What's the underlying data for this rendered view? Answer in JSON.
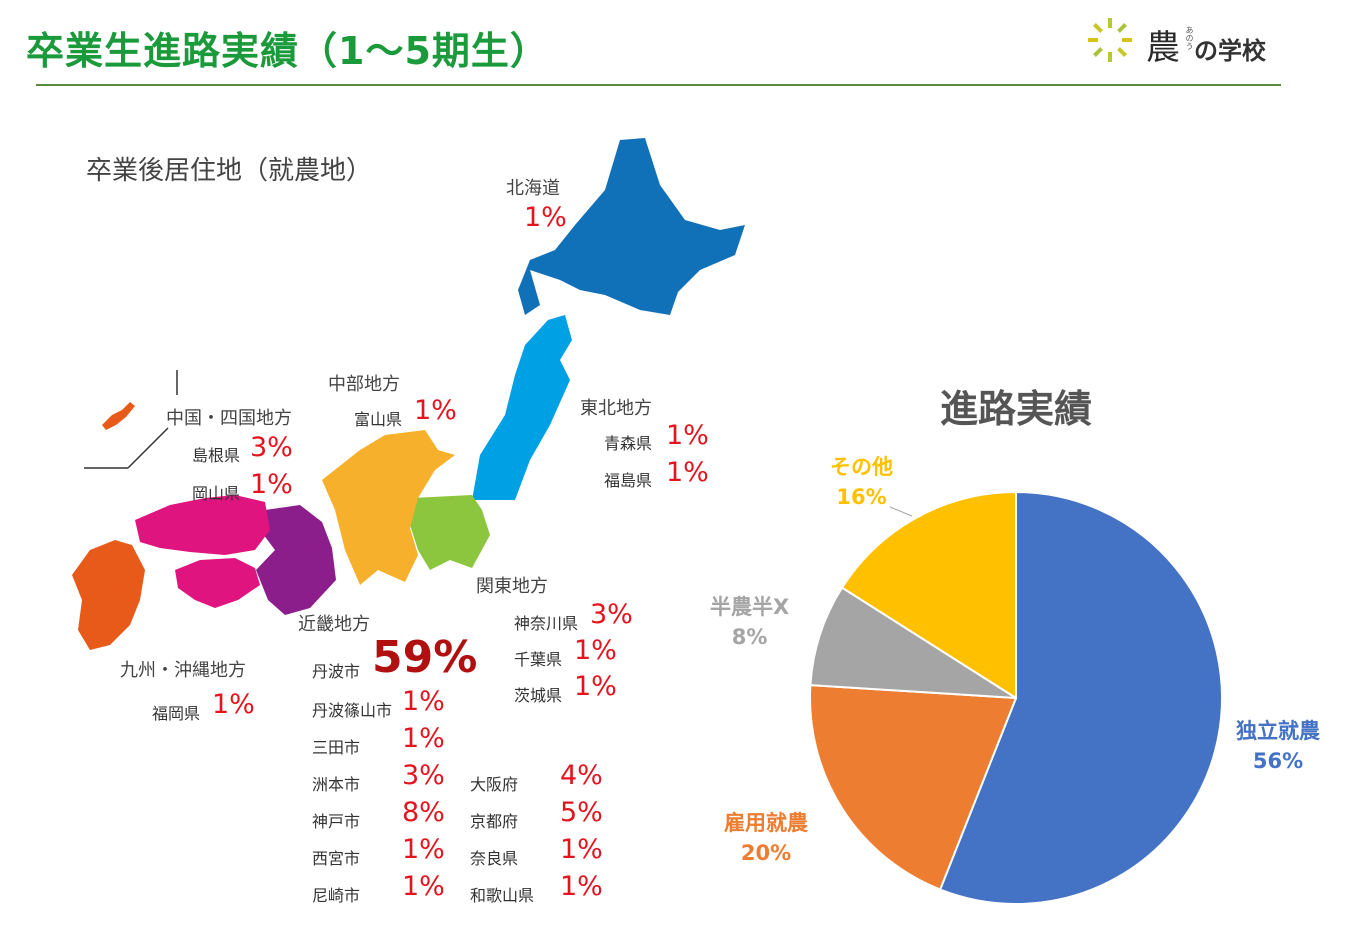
{
  "header": {
    "title": "卒業生進路実績（1～5期生）",
    "logo_kanji": "農",
    "logo_ruby": "あのう",
    "logo_rest": "の学校"
  },
  "map_section": {
    "subtitle": "卒業後居住地（就農地）",
    "regions": {
      "hokkaido": {
        "name": "北海道",
        "pct": "1%"
      },
      "tohoku": {
        "name": "東北地方",
        "prefs": [
          {
            "name": "青森県",
            "pct": "1%"
          },
          {
            "name": "福島県",
            "pct": "1%"
          }
        ]
      },
      "chubu": {
        "name": "中部地方",
        "prefs": [
          {
            "name": "富山県",
            "pct": "1%"
          }
        ]
      },
      "chugoku_shikoku": {
        "name": "中国・四国地方",
        "prefs": [
          {
            "name": "島根県",
            "pct": "3%"
          },
          {
            "name": "岡山県",
            "pct": "1%"
          }
        ]
      },
      "kanto": {
        "name": "関東地方",
        "prefs": [
          {
            "name": "神奈川県",
            "pct": "3%"
          },
          {
            "name": "千葉県",
            "pct": "1%"
          },
          {
            "name": "茨城県",
            "pct": "1%"
          }
        ]
      },
      "kyushu": {
        "name": "九州・沖縄地方",
        "prefs": [
          {
            "name": "福岡県",
            "pct": "1%"
          }
        ]
      },
      "kinki": {
        "name": "近畿地方",
        "left": [
          {
            "name": "丹波市",
            "pct": "59%"
          },
          {
            "name": "丹波篠山市",
            "pct": "1%"
          },
          {
            "name": "三田市",
            "pct": "1%"
          },
          {
            "name": "洲本市",
            "pct": "3%"
          },
          {
            "name": "神戸市",
            "pct": "8%"
          },
          {
            "name": "西宮市",
            "pct": "1%"
          },
          {
            "name": "尼崎市",
            "pct": "1%"
          }
        ],
        "right": [
          {
            "name": "大阪府",
            "pct": "4%"
          },
          {
            "name": "京都府",
            "pct": "5%"
          },
          {
            "name": "奈良県",
            "pct": "1%"
          },
          {
            "name": "和歌山県",
            "pct": "1%"
          }
        ]
      }
    },
    "colors": {
      "hokkaido": "#1070b8",
      "tohoku": "#00a0e4",
      "kanto": "#8cc63e",
      "chubu": "#f6b02c",
      "kinki": "#8b1e8b",
      "chugoku_shikoku": "#e0147e",
      "kyushu": "#e85a1a"
    }
  },
  "chart_data": {
    "type": "pie",
    "title": "進路実績",
    "slices": [
      {
        "label": "独立就農",
        "value": 56,
        "display": "56%",
        "color": "#4472c4"
      },
      {
        "label": "雇用就農",
        "value": 20,
        "display": "20%",
        "color": "#ed7d31"
      },
      {
        "label": "半農半X",
        "value": 8,
        "display": "8%",
        "color": "#a5a5a5"
      },
      {
        "label": "その他",
        "value": 16,
        "display": "16%",
        "color": "#ffc000"
      }
    ],
    "start": "12 o'clock",
    "direction": "clockwise",
    "legend": "none (labels beside slices)"
  }
}
